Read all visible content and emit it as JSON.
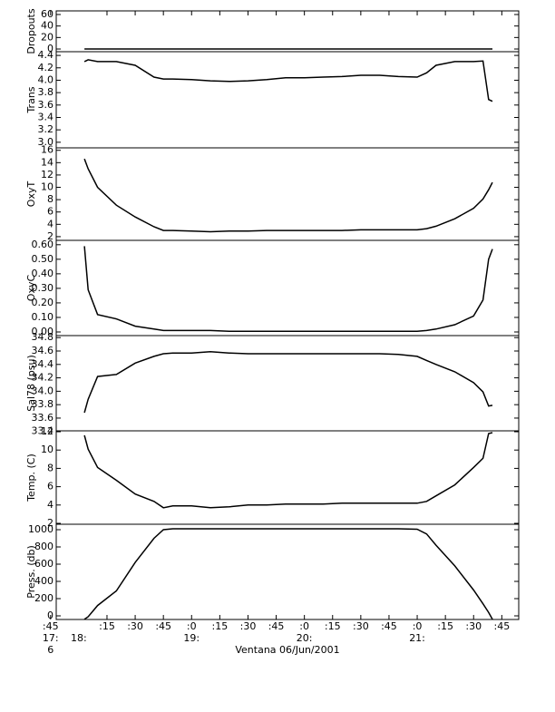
{
  "chart_data": {
    "type": "line",
    "xlabel": "Ventana 06/Jun/2001",
    "xlim": [
      "17:48",
      "21:54"
    ],
    "xticks": [
      {
        "value": "17:45",
        "label": ":45"
      },
      {
        "value": "18:15",
        "label": ":15"
      },
      {
        "value": "18:30",
        "label": ":30"
      },
      {
        "value": "18:45",
        "label": ":45"
      },
      {
        "value": "19:00",
        "label": ":0"
      },
      {
        "value": "19:15",
        "label": ":15"
      },
      {
        "value": "19:30",
        "label": ":30"
      },
      {
        "value": "19:45",
        "label": ":45"
      },
      {
        "value": "20:00",
        "label": ":0"
      },
      {
        "value": "20:15",
        "label": ":15"
      },
      {
        "value": "20:30",
        "label": ":30"
      },
      {
        "value": "20:45",
        "label": ":45"
      },
      {
        "value": "21:00",
        "label": ":0"
      },
      {
        "value": "21:15",
        "label": ":15"
      },
      {
        "value": "21:30",
        "label": ":30"
      },
      {
        "value": "21:45",
        "label": ":45"
      }
    ],
    "x_hour_labels": [
      {
        "value": "17:45",
        "label": "17:"
      },
      {
        "value": "18:00",
        "label": "18:"
      },
      {
        "value": "19:00",
        "label": "19:"
      },
      {
        "value": "20:00",
        "label": "20:"
      },
      {
        "value": "21:00",
        "label": "21:"
      }
    ],
    "x_day_label": {
      "value": "17:45",
      "label": "6"
    },
    "x": [
      "18:03",
      "18:05",
      "18:10",
      "18:20",
      "18:30",
      "18:40",
      "18:45",
      "18:50",
      "19:00",
      "19:10",
      "19:20",
      "19:30",
      "19:40",
      "19:50",
      "20:00",
      "20:10",
      "20:20",
      "20:30",
      "20:40",
      "20:50",
      "21:00",
      "21:05",
      "21:10",
      "21:20",
      "21:30",
      "21:35",
      "21:38",
      "21:40"
    ],
    "panels": [
      {
        "ylabel": "Dropouts",
        "ylim": [
          -4.7,
          66.3
        ],
        "yticks": [
          60,
          40,
          20,
          0
        ],
        "color": "#000000",
        "values": [
          0,
          0,
          0,
          0,
          0,
          0,
          0,
          0,
          0,
          0,
          0,
          0,
          0,
          0,
          0,
          0,
          0,
          0,
          0,
          0,
          0,
          0,
          0,
          0,
          0,
          0,
          0,
          0
        ]
      },
      {
        "ylabel": "Trans",
        "ylim": [
          2.91,
          4.46
        ],
        "yticks": [
          4.4,
          4.2,
          {
            "value": 4,
            "label": "4.0"
          },
          3.8,
          3.6,
          3.4,
          3.2,
          {
            "value": 3,
            "label": "3.0"
          }
        ],
        "color": "#000000",
        "values": [
          4.3,
          4.33,
          4.3,
          4.3,
          4.24,
          4.05,
          4.02,
          4.02,
          4.01,
          3.99,
          3.98,
          3.99,
          4.01,
          4.04,
          4.04,
          4.05,
          4.06,
          4.08,
          4.08,
          4.06,
          4.05,
          4.12,
          4.24,
          4.3,
          4.3,
          4.31,
          3.69,
          3.66
        ]
      },
      {
        "ylabel": "OxyT",
        "ylim": [
          1.4,
          16.4
        ],
        "yticks": [
          16,
          14,
          12,
          10,
          8,
          6,
          4,
          2
        ],
        "color": "#000000",
        "values": [
          14.6,
          13.0,
          10.0,
          7.1,
          5.2,
          3.6,
          3.0,
          3.0,
          2.9,
          2.8,
          2.9,
          2.9,
          3.0,
          3.0,
          3.0,
          3.0,
          3.0,
          3.1,
          3.1,
          3.1,
          3.1,
          3.3,
          3.7,
          4.9,
          6.6,
          8.1,
          9.6,
          10.8
        ]
      },
      {
        "ylabel": "OxyC",
        "ylim": [
          -0.025,
          0.63
        ],
        "yticks": [
          {
            "value": 0.6,
            "label": "0.60"
          },
          {
            "value": 0.5,
            "label": "0.50"
          },
          {
            "value": 0.4,
            "label": "0.40"
          },
          {
            "value": 0.3,
            "label": "0.30"
          },
          {
            "value": 0.2,
            "label": "0.20"
          },
          {
            "value": 0.1,
            "label": "0.10"
          },
          {
            "value": 0,
            "label": "0.00"
          }
        ],
        "color": "#000000",
        "values": [
          0.59,
          0.29,
          0.12,
          0.09,
          0.04,
          0.02,
          0.01,
          0.01,
          0.01,
          0.01,
          0.005,
          0.005,
          0.005,
          0.005,
          0.005,
          0.005,
          0.005,
          0.005,
          0.005,
          0.005,
          0.005,
          0.01,
          0.02,
          0.05,
          0.11,
          0.22,
          0.5,
          0.57
        ]
      },
      {
        "ylabel": "Sal78 (psu)",
        "ylim": [
          33.41,
          34.83
        ],
        "yticks": [
          34.8,
          34.6,
          34.4,
          34.2,
          {
            "value": 34,
            "label": "34.0"
          },
          33.8,
          33.6,
          33.4
        ],
        "color": "#000000",
        "values": [
          33.68,
          33.88,
          34.22,
          34.25,
          34.42,
          34.52,
          34.56,
          34.57,
          34.57,
          34.59,
          34.57,
          34.56,
          34.56,
          34.56,
          34.56,
          34.56,
          34.56,
          34.56,
          34.56,
          34.55,
          34.52,
          34.46,
          34.4,
          34.29,
          34.13,
          33.99,
          33.78,
          33.79
        ]
      },
      {
        "ylabel": "Temp. (C)",
        "ylim": [
          1.9,
          12.1
        ],
        "yticks": [
          12,
          10,
          8,
          6,
          4,
          2
        ],
        "color": "#000000",
        "values": [
          11.6,
          10.1,
          8.1,
          6.7,
          5.2,
          4.4,
          3.7,
          3.9,
          3.9,
          3.7,
          3.8,
          4.0,
          4.0,
          4.1,
          4.1,
          4.1,
          4.2,
          4.2,
          4.2,
          4.2,
          4.2,
          4.4,
          5.0,
          6.2,
          8.1,
          9.1,
          11.8,
          11.9
        ]
      },
      {
        "ylabel": "Press. (db)",
        "ylim": [
          -42,
          1063
        ],
        "yticks": [
          1000,
          800,
          600,
          400,
          200,
          0
        ],
        "color": "#000000",
        "values": [
          -40,
          -10,
          120,
          290,
          620,
          900,
          1000,
          1010,
          1010,
          1010,
          1010,
          1010,
          1010,
          1010,
          1010,
          1010,
          1010,
          1010,
          1010,
          1010,
          1005,
          950,
          820,
          580,
          300,
          140,
          40,
          -40
        ]
      }
    ]
  }
}
